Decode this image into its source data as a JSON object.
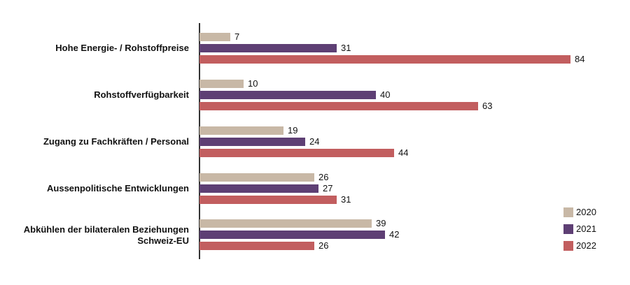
{
  "chart_data": {
    "type": "bar",
    "orientation": "horizontal",
    "title": "",
    "xlabel": "",
    "ylabel": "",
    "categories": [
      "Hohe Energie- / Rohstoffpreise",
      "Rohstoffverfügbarkeit",
      "Zugang zu Fachkräften / Personal",
      "Aussenpolitische Entwicklungen",
      "Abkühlen der bilateralen Beziehungen Schweiz-EU"
    ],
    "series": [
      {
        "name": "2020",
        "color": "#c8b8a6",
        "values": [
          7,
          10,
          19,
          26,
          39
        ]
      },
      {
        "name": "2021",
        "color": "#5e3f74",
        "values": [
          31,
          40,
          24,
          27,
          42
        ]
      },
      {
        "name": "2022",
        "color": "#c25e5f",
        "values": [
          84,
          63,
          44,
          31,
          26
        ]
      }
    ],
    "xlim": [
      0,
      84
    ],
    "grid": false,
    "data_labels": true,
    "legend_position": "bottom-right"
  },
  "labels": {
    "cat0_line1": "Hohe Energie- / Rohstoffpreise",
    "cat1_line1": "Rohstoffverfügbarkeit",
    "cat2_line1": "Zugang zu Fachkräften / Personal",
    "cat3_line1": "Aussenpolitische Entwicklungen",
    "cat4_line1": "Abkühlen der bilateralen Beziehungen",
    "cat4_line2": "Schweiz-EU"
  },
  "legend": [
    {
      "label": "2020",
      "color": "#c8b8a6"
    },
    {
      "label": "2021",
      "color": "#5e3f74"
    },
    {
      "label": "2022",
      "color": "#c25e5f"
    }
  ]
}
